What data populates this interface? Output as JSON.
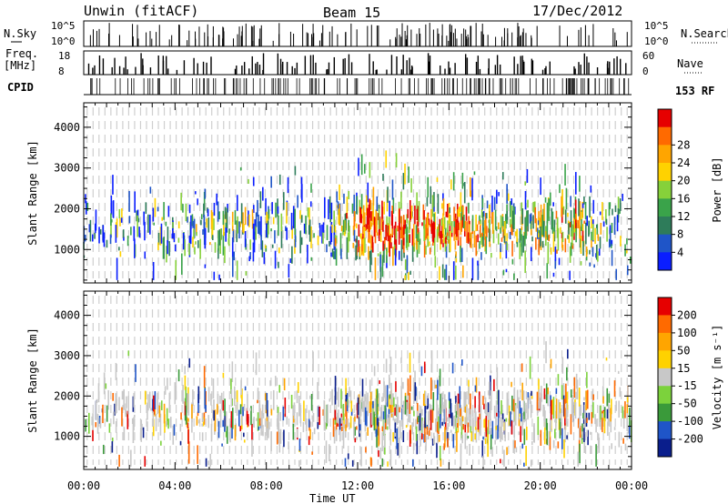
{
  "header": {
    "site": "Unwin (fitACF)",
    "beam": "Beam 15",
    "date": "17/Dec/2012"
  },
  "strip_labels": {
    "nsky": "N.Sky",
    "nsearch": "N.Search",
    "freq": "Freq.",
    "freq_unit": "[MHz]",
    "nave": "Nave",
    "cpid": "CPID",
    "cpid_mode": "153 RF"
  },
  "noise_axis": {
    "left_top": "10^5",
    "left_bottom": "10^0",
    "right_top": "10^5",
    "right_bottom": "10^0"
  },
  "freq_axis": {
    "left_top": "18",
    "left_bottom": "8",
    "right_top": "60",
    "right_bottom": "0"
  },
  "x_axis": {
    "label": "Time UT",
    "ticks": [
      "00:00",
      "04:00",
      "08:00",
      "12:00",
      "16:00",
      "20:00",
      "00:00"
    ]
  },
  "chart_data": [
    {
      "type": "heatmap",
      "panel": "power",
      "ylabel": "Slant Range [km]",
      "y_ticks": [
        1000,
        2000,
        3000,
        4000
      ],
      "ylim": [
        180,
        4600
      ],
      "xlim_hours": [
        0,
        24
      ],
      "colorbar": {
        "label": "Power [dB]",
        "ticks": [
          "4",
          "8",
          "12",
          "16",
          "20",
          "24",
          "28"
        ],
        "colors": [
          "#0a1eff",
          "#1f55c8",
          "#2e7c5a",
          "#3aa34a",
          "#86d13a",
          "#ffd200",
          "#ffa500",
          "#ff6a00",
          "#e60000"
        ]
      },
      "activity": [
        {
          "x": 0.5,
          "level": 0.2
        },
        {
          "x": 1.5,
          "level": 0.28
        },
        {
          "x": 2.5,
          "level": 0.22
        },
        {
          "x": 3.5,
          "level": 0.3
        },
        {
          "x": 4.5,
          "level": 0.33
        },
        {
          "x": 5.5,
          "level": 0.4
        },
        {
          "x": 6.5,
          "level": 0.42
        },
        {
          "x": 7.5,
          "level": 0.38
        },
        {
          "x": 8.5,
          "level": 0.35
        },
        {
          "x": 9.5,
          "level": 0.32
        },
        {
          "x": 10.5,
          "level": 0.28
        },
        {
          "x": 11.5,
          "level": 0.55
        },
        {
          "x": 12.5,
          "level": 0.85
        },
        {
          "x": 13.5,
          "level": 0.78
        },
        {
          "x": 14.5,
          "level": 0.7
        },
        {
          "x": 15.5,
          "level": 0.75
        },
        {
          "x": 16.5,
          "level": 0.72
        },
        {
          "x": 17.5,
          "level": 0.6
        },
        {
          "x": 18.5,
          "level": 0.55
        },
        {
          "x": 19.5,
          "level": 0.5
        },
        {
          "x": 20.5,
          "level": 0.58
        },
        {
          "x": 21.5,
          "level": 0.62
        },
        {
          "x": 22.5,
          "level": 0.4
        },
        {
          "x": 23.5,
          "level": 0.3
        }
      ]
    },
    {
      "type": "heatmap",
      "panel": "velocity",
      "ylabel": "Slant Range [km]",
      "y_ticks": [
        1000,
        2000,
        3000,
        4000
      ],
      "ylim": [
        180,
        4600
      ],
      "xlim_hours": [
        0,
        24
      ],
      "colorbar": {
        "label": "Velocity [m s⁻¹]",
        "ticks": [
          "200",
          "100",
          "50",
          "15",
          "-15",
          "-50",
          "-100",
          "-200"
        ],
        "colors": [
          "#0a1e8c",
          "#1f55c8",
          "#3a9a3a",
          "#7cd23c",
          "#c8c8c8",
          "#ffd200",
          "#ffa500",
          "#ff6a00",
          "#e60000"
        ]
      },
      "activity": [
        {
          "x": 0.5,
          "level": 0.2
        },
        {
          "x": 1.5,
          "level": 0.28
        },
        {
          "x": 2.5,
          "level": 0.22
        },
        {
          "x": 3.5,
          "level": 0.3
        },
        {
          "x": 4.5,
          "level": 0.33
        },
        {
          "x": 5.5,
          "level": 0.4
        },
        {
          "x": 6.5,
          "level": 0.42
        },
        {
          "x": 7.5,
          "level": 0.38
        },
        {
          "x": 8.5,
          "level": 0.35
        },
        {
          "x": 9.5,
          "level": 0.32
        },
        {
          "x": 10.5,
          "level": 0.28
        },
        {
          "x": 11.5,
          "level": 0.55
        },
        {
          "x": 12.5,
          "level": 0.85
        },
        {
          "x": 13.5,
          "level": 0.78
        },
        {
          "x": 14.5,
          "level": 0.7
        },
        {
          "x": 15.5,
          "level": 0.75
        },
        {
          "x": 16.5,
          "level": 0.72
        },
        {
          "x": 17.5,
          "level": 0.6
        },
        {
          "x": 18.5,
          "level": 0.55
        },
        {
          "x": 19.5,
          "level": 0.5
        },
        {
          "x": 20.5,
          "level": 0.58
        },
        {
          "x": 21.5,
          "level": 0.62
        },
        {
          "x": 22.5,
          "level": 0.4
        },
        {
          "x": 23.5,
          "level": 0.3
        }
      ]
    }
  ]
}
